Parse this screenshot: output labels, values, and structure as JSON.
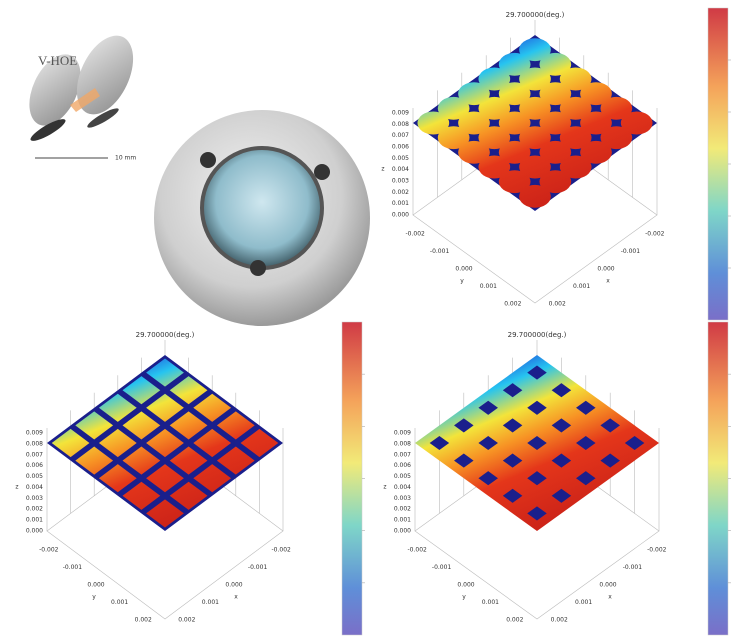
{
  "inset": {
    "label": "V-HOE",
    "scale_label": "10 mm"
  },
  "plots": [
    {
      "title": "29.700000(deg.)",
      "x_label": "x",
      "y_label": "y",
      "z_label": "z",
      "z_ticks": [
        "0.000",
        "0.001",
        "0.002",
        "0.003",
        "0.004",
        "0.005",
        "0.006",
        "0.007",
        "0.008",
        "0.009"
      ],
      "x_ticks": [
        "-0.002",
        "-0.001",
        "0.000",
        "0.001",
        "0.002"
      ],
      "y_ticks": [
        "-0.002",
        "-0.001",
        "0.000",
        "0.001",
        "0.002"
      ]
    },
    {
      "title": "29.700000(deg.)",
      "x_label": "x",
      "y_label": "y",
      "z_label": "z",
      "z_ticks": [
        "0.000",
        "0.001",
        "0.002",
        "0.003",
        "0.004",
        "0.005",
        "0.006",
        "0.007",
        "0.008",
        "0.009"
      ],
      "x_ticks": [
        "-0.002",
        "-0.001",
        "0.000",
        "0.001",
        "0.002"
      ],
      "y_ticks": [
        "-0.002",
        "-0.001",
        "0.000",
        "0.001",
        "0.002"
      ]
    },
    {
      "title": "29.700000(deg.)",
      "x_label": "x",
      "y_label": "y",
      "z_label": "z",
      "z_ticks": [
        "0.000",
        "0.001",
        "0.002",
        "0.003",
        "0.004",
        "0.005",
        "0.006",
        "0.007",
        "0.008",
        "0.009"
      ],
      "x_ticks": [
        "-0.002",
        "-0.001",
        "0.000",
        "0.001",
        "0.002"
      ],
      "y_ticks": [
        "-0.002",
        "-0.001",
        "0.000",
        "0.001",
        "0.002"
      ]
    }
  ]
}
